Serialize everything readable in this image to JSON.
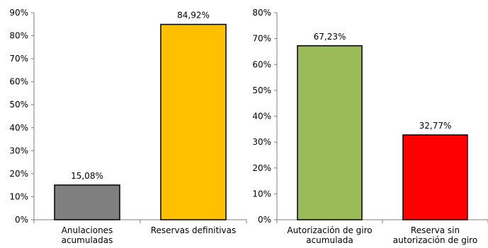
{
  "chart_data": [
    {
      "type": "bar",
      "title": "",
      "xlabel": "",
      "ylabel": "",
      "categories": [
        [
          "Anulaciones",
          "acumuladas"
        ],
        [
          "Reservas definitivas"
        ]
      ],
      "values": [
        15.08,
        84.92
      ],
      "data_labels": [
        "15,08%",
        "84,92%"
      ],
      "colors": [
        "#7f7f7f",
        "#ffc000"
      ],
      "ylim": [
        0,
        90
      ],
      "yticks": [
        0,
        10,
        20,
        30,
        40,
        50,
        60,
        70,
        80,
        90
      ],
      "ytick_labels": [
        "0%",
        "10%",
        "20%",
        "30%",
        "40%",
        "50%",
        "60%",
        "70%",
        "80%",
        "90%"
      ],
      "grid": false,
      "legend": "none"
    },
    {
      "type": "bar",
      "title": "",
      "xlabel": "",
      "ylabel": "",
      "categories": [
        [
          "Autorización de giro",
          "acumulada"
        ],
        [
          "Reserva sin",
          "autorización de giro"
        ]
      ],
      "values": [
        67.23,
        32.77
      ],
      "data_labels": [
        "67,23%",
        "32,77%"
      ],
      "colors": [
        "#9bbb59",
        "#ff0000"
      ],
      "ylim": [
        0,
        80
      ],
      "yticks": [
        0,
        10,
        20,
        30,
        40,
        50,
        60,
        70,
        80
      ],
      "ytick_labels": [
        "0%",
        "10%",
        "20%",
        "30%",
        "40%",
        "50%",
        "60%",
        "70%",
        "80%"
      ],
      "grid": false,
      "legend": "none"
    }
  ]
}
